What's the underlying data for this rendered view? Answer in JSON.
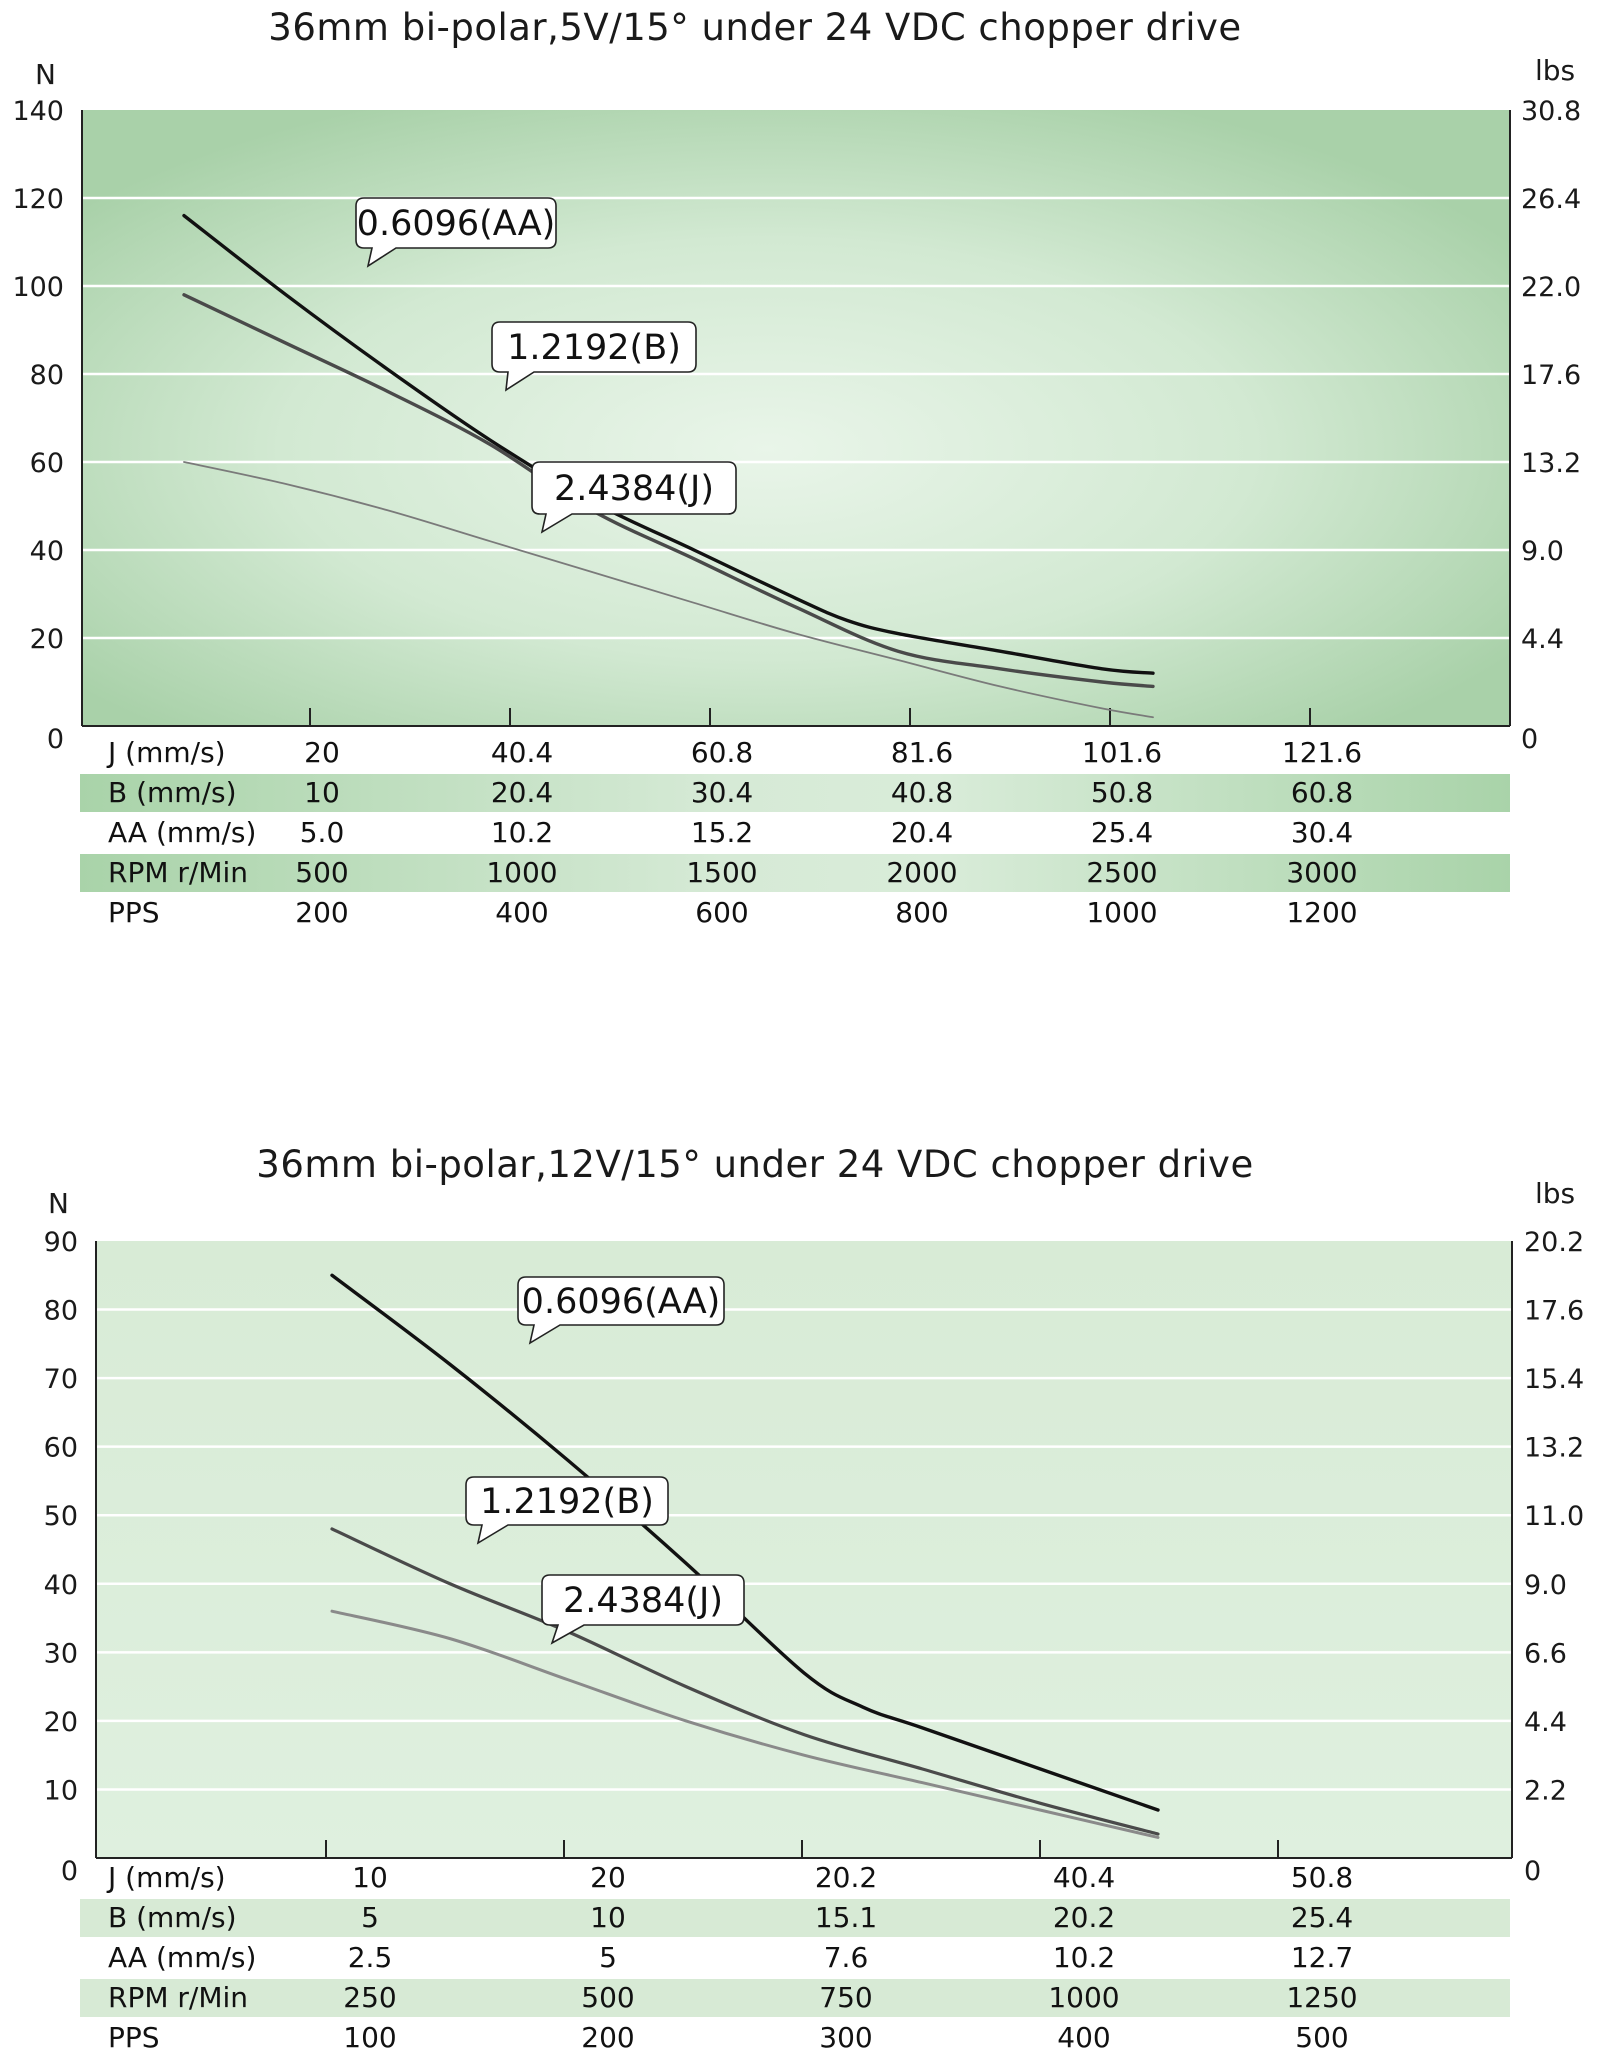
{
  "colors": {
    "curve_AA": "#111111",
    "curve_B": "#4a4a4a",
    "curve_J1": "#7a7a7a",
    "curve_J2": "#8a8a8a",
    "grid": "#ffffff",
    "plot_bg_light": "#dff0df",
    "plot_bg_dark": "#a9d1a9"
  },
  "chart_data": [
    {
      "type": "line",
      "title": "36mm bi-polar,5V/15° under 24 VDC chopper drive",
      "ylabel": "N",
      "y2label": "lbs",
      "ylim": [
        0,
        140
      ],
      "yticks": [
        "0",
        "20",
        "40",
        "60",
        "80",
        "100",
        "120",
        "140"
      ],
      "y2ticks": [
        "0",
        "4.4",
        "9.0",
        "13.2",
        "17.6",
        "22.0",
        "26.4",
        "30.8"
      ],
      "grid": true,
      "x_unit": "PPS",
      "xlim": [
        0,
        1400
      ],
      "series": [
        {
          "name": "0.6096(AA)",
          "x": [
            100,
            200,
            300,
            400,
            500,
            600,
            700,
            750,
            800,
            900,
            1000,
            1050
          ],
          "y": [
            116,
            98,
            81,
            65,
            51,
            40,
            29,
            24,
            21,
            17,
            13,
            12
          ]
        },
        {
          "name": "1.2192(B)",
          "x": [
            100,
            200,
            300,
            400,
            500,
            600,
            700,
            800,
            900,
            1000,
            1050
          ],
          "y": [
            98,
            87,
            76,
            64,
            49,
            38,
            27,
            17,
            13,
            10,
            9
          ]
        },
        {
          "name": "2.4384(J)",
          "x": [
            100,
            200,
            300,
            400,
            500,
            600,
            700,
            800,
            900,
            1000,
            1050
          ],
          "y": [
            60,
            55,
            49,
            42,
            35,
            28,
            21,
            15,
            9,
            4,
            2
          ]
        }
      ],
      "callouts": [
        "0.6096(AA)",
        "1.2192(B)",
        "2.4384(J)"
      ],
      "table": {
        "rows": [
          {
            "label": "J (mm/s)",
            "values": [
              "20",
              "40.4",
              "60.8",
              "81.6",
              "101.6",
              "121.6"
            ]
          },
          {
            "label": "B (mm/s)",
            "values": [
              "10",
              "20.4",
              "30.4",
              "40.8",
              "50.8",
              "60.8"
            ]
          },
          {
            "label": "AA (mm/s)",
            "values": [
              "5.0",
              "10.2",
              "15.2",
              "20.4",
              "25.4",
              "30.4"
            ]
          },
          {
            "label": "RPM r/Min",
            "values": [
              "500",
              "1000",
              "1500",
              "2000",
              "2500",
              "3000"
            ]
          },
          {
            "label": "PPS",
            "values": [
              "200",
              "400",
              "600",
              "800",
              "1000",
              "1200"
            ]
          }
        ]
      }
    },
    {
      "type": "line",
      "title": "36mm bi-polar,12V/15° under 24 VDC chopper drive",
      "ylabel": "N",
      "y2label": "lbs",
      "ylim": [
        0,
        90
      ],
      "yticks": [
        "0",
        "10",
        "20",
        "30",
        "40",
        "50",
        "60",
        "70",
        "80",
        "90"
      ],
      "y2ticks": [
        "0",
        "2.2",
        "4.4",
        "6.6",
        "9.0",
        "11.0",
        "13.2",
        "15.4",
        "17.6",
        "20.2"
      ],
      "grid": true,
      "x_unit": "PPS",
      "xlim": [
        0,
        600
      ],
      "series": [
        {
          "name": "0.6096(AA)",
          "x": [
            100,
            150,
            200,
            250,
            300,
            325,
            350,
            400,
            450
          ],
          "y": [
            85,
            72,
            58,
            43,
            27,
            22,
            19,
            13,
            7
          ]
        },
        {
          "name": "1.2192(B)",
          "x": [
            100,
            150,
            200,
            250,
            300,
            350,
            400,
            450
          ],
          "y": [
            48,
            40,
            33,
            25,
            18,
            13,
            8,
            3.5
          ]
        },
        {
          "name": "2.4384(J)",
          "x": [
            100,
            150,
            200,
            250,
            300,
            350,
            400,
            450
          ],
          "y": [
            36,
            32,
            26,
            20,
            15,
            11,
            7,
            3
          ]
        }
      ],
      "callouts": [
        "0.6096(AA)",
        "1.2192(B)",
        "2.4384(J)"
      ],
      "table": {
        "rows": [
          {
            "label": "J (mm/s)",
            "values": [
              "10",
              "20",
              "20.2",
              "40.4",
              "50.8"
            ]
          },
          {
            "label": "B (mm/s)",
            "values": [
              "5",
              "10",
              "15.1",
              "20.2",
              "25.4"
            ]
          },
          {
            "label": "AA (mm/s)",
            "values": [
              "2.5",
              "5",
              "7.6",
              "10.2",
              "12.7"
            ]
          },
          {
            "label": "RPM r/Min",
            "values": [
              "250",
              "500",
              "750",
              "1000",
              "1250"
            ]
          },
          {
            "label": "PPS",
            "values": [
              "100",
              "200",
              "300",
              "400",
              "500"
            ]
          }
        ]
      }
    }
  ]
}
